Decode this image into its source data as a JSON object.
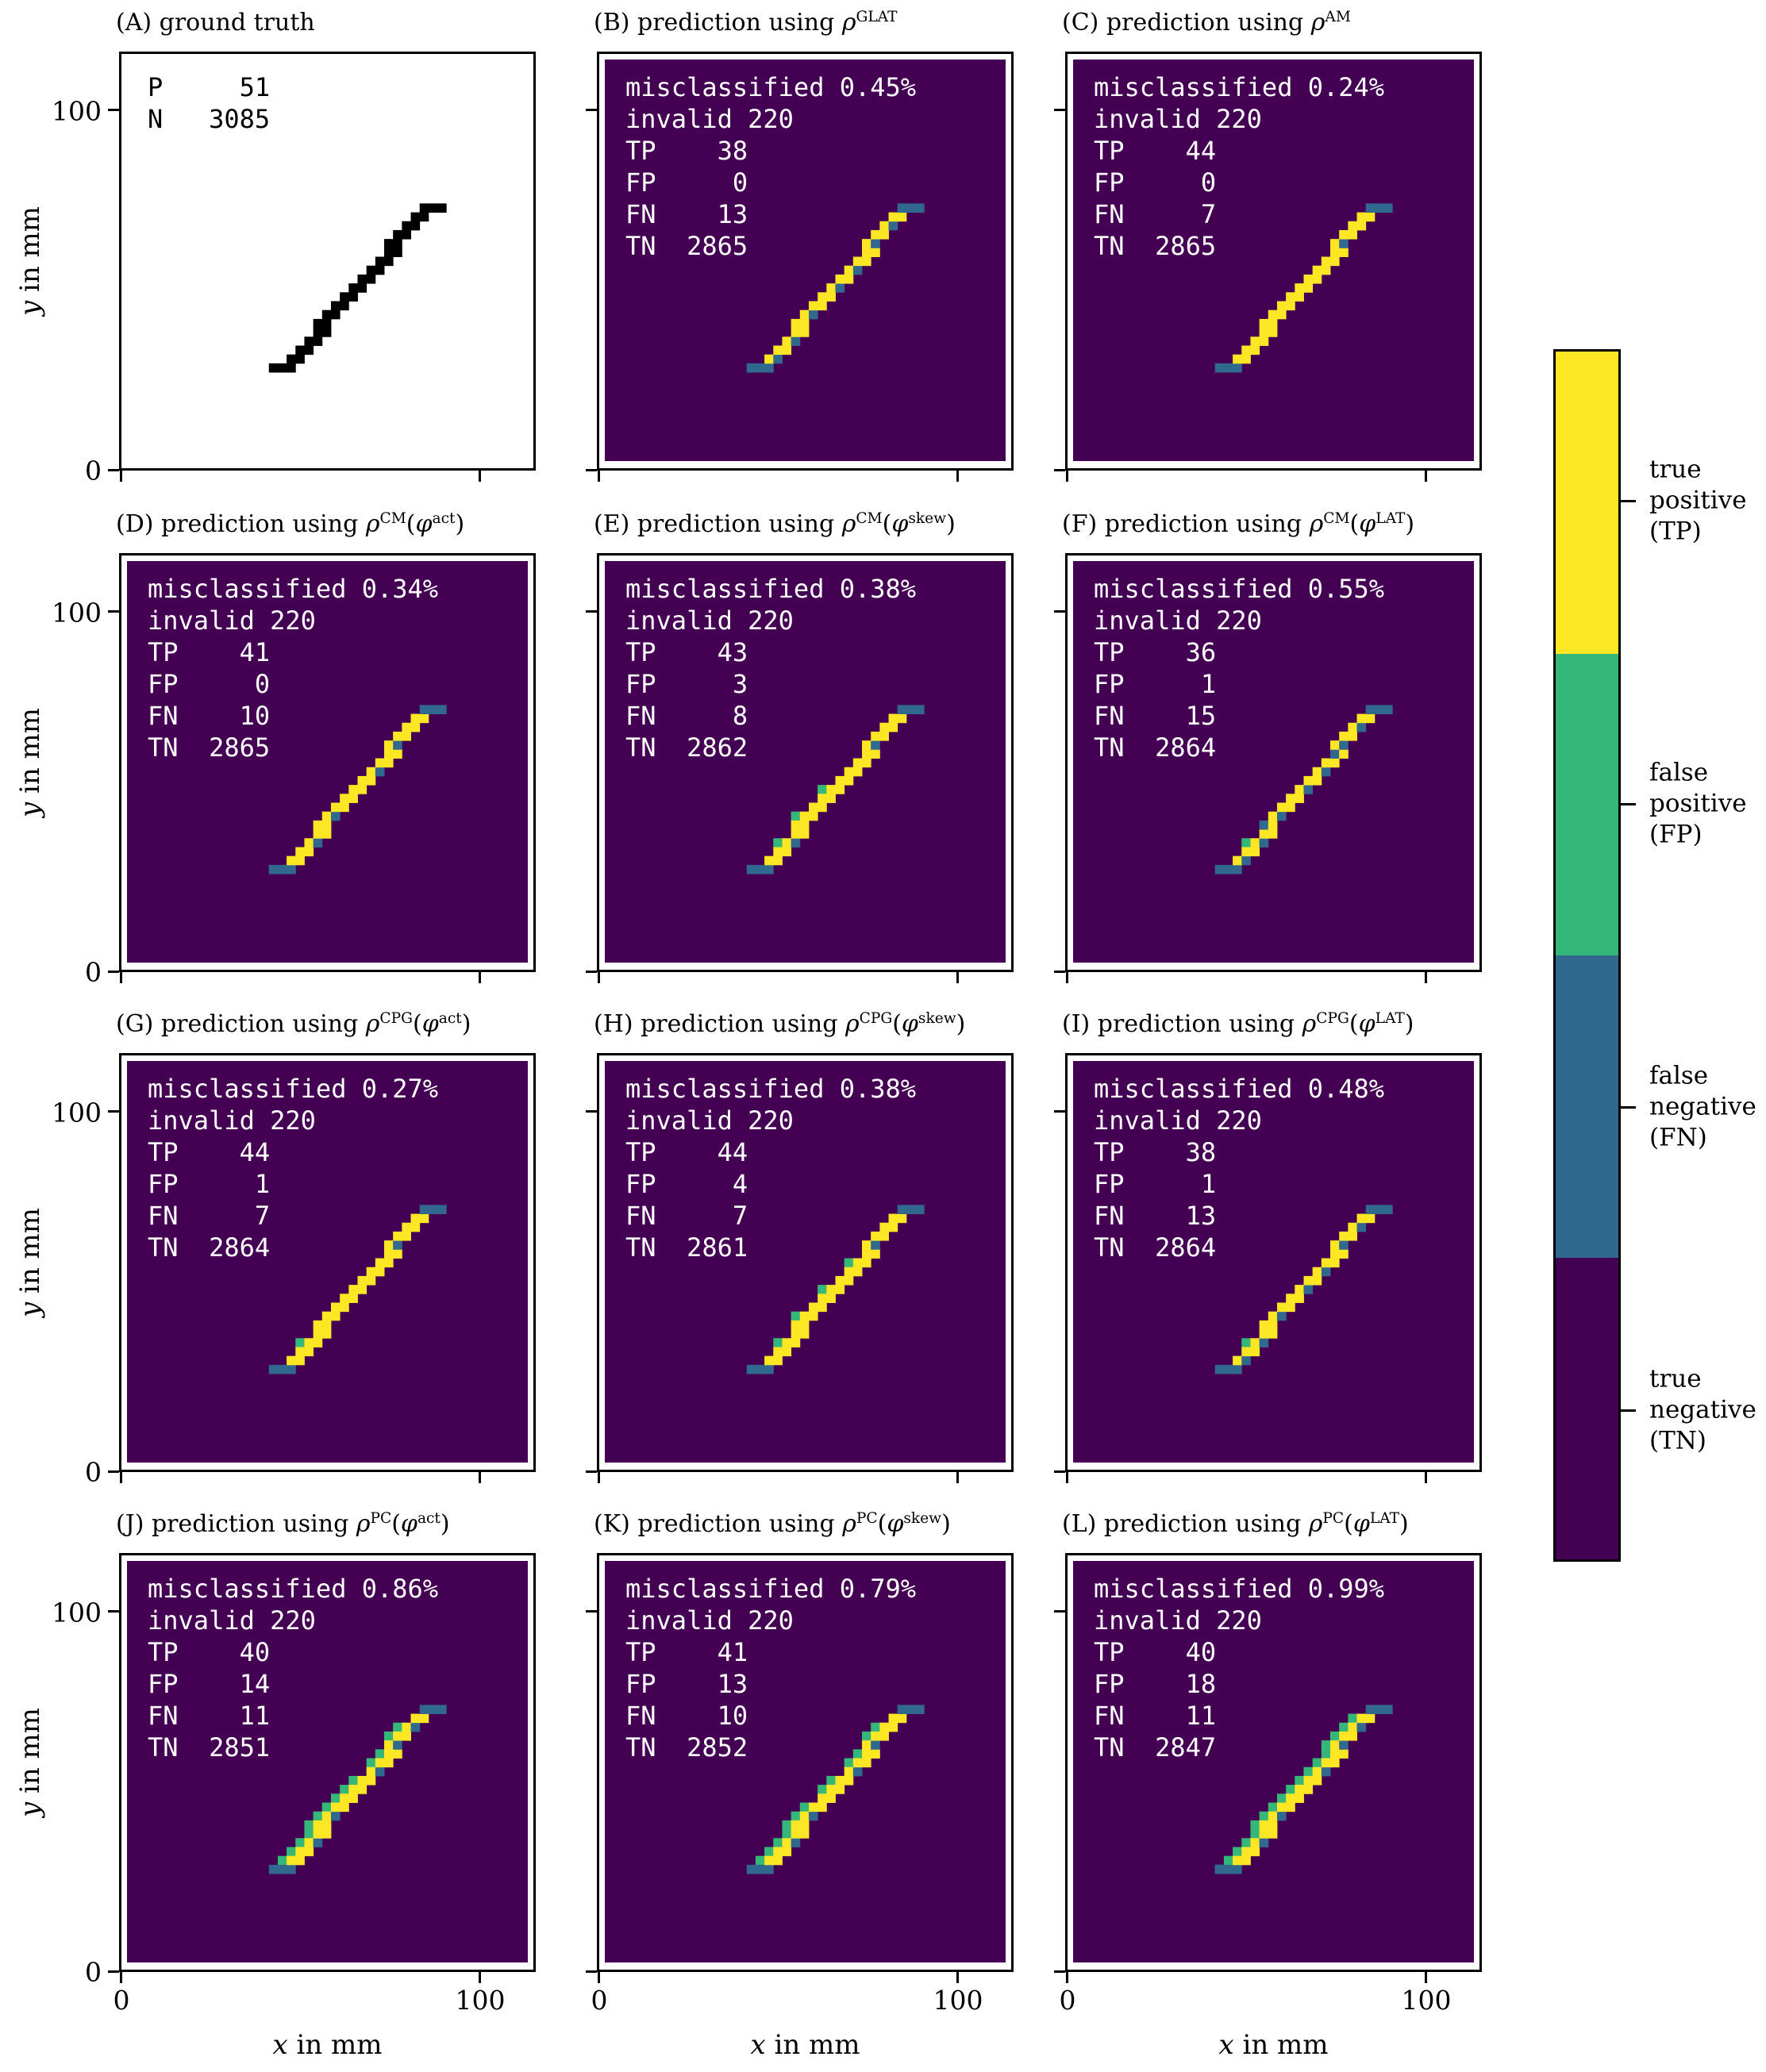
{
  "figure": {
    "axis": {
      "x_var": "x",
      "y_var": "y",
      "label_suffix": " in mm",
      "x_ticks": [
        "0",
        "100"
      ],
      "y_ticks": [
        "0",
        "100"
      ]
    },
    "colors": {
      "tp": "#fde725",
      "fp": "#35b779",
      "fn": "#31688e",
      "tn": "#440154",
      "gt_positive": "#000000",
      "gt_background": "#ffffff",
      "frame": "#000000",
      "text": "#000000",
      "stats_on_dark": "#ffffff"
    },
    "colorbar": {
      "entries": [
        {
          "key": "TP",
          "lines": [
            "true",
            "positive",
            "(TP)"
          ],
          "color_ref": "tp"
        },
        {
          "key": "FP",
          "lines": [
            "false",
            "positive",
            "(FP)"
          ],
          "color_ref": "fp"
        },
        {
          "key": "FN",
          "lines": [
            "false",
            "negative",
            "(FN)"
          ],
          "color_ref": "fn"
        },
        {
          "key": "TN",
          "lines": [
            "true",
            "negative",
            "(TN)"
          ],
          "color_ref": "tn"
        }
      ]
    }
  },
  "chart_data": {
    "type": "heatmap",
    "description": "12 panels (A-L) comparing a ground-truth pixelated diagonal line (2.5 mm cells) with 11 classifier predictions; prediction cells are colored by confusion category (TP yellow, FP green, FN blue, TN dark purple).",
    "categories": [
      "TP",
      "FP",
      "FN",
      "TN"
    ],
    "axis_range_mm": {
      "x": [
        0,
        116
      ],
      "y": [
        0,
        116
      ]
    },
    "line_segment_mm": {
      "x0": 42.5,
      "y0": 25,
      "x1": 87.5,
      "y1": 72.5,
      "cell_size": 2.5
    },
    "panels": [
      {
        "id": "A",
        "title_label": "(A)",
        "title_text": "ground truth",
        "method": null,
        "arg": null,
        "stats_lines": [
          "P     51",
          "N   3085"
        ],
        "counts": {
          "P": 51,
          "N": 3085
        }
      },
      {
        "id": "B",
        "title_label": "(B)",
        "title_text": "prediction using",
        "method": "GLAT",
        "arg": null,
        "stats_lines": [
          "misclassified 0.45%",
          "invalid 220",
          "TP    38",
          "FP     0",
          "FN    13",
          "TN  2865"
        ],
        "counts": {
          "misclassified_pct": 0.45,
          "invalid": 220,
          "TP": 38,
          "FP": 0,
          "FN": 13,
          "TN": 2865
        }
      },
      {
        "id": "C",
        "title_label": "(C)",
        "title_text": "prediction using",
        "method": "AM",
        "arg": null,
        "stats_lines": [
          "misclassified 0.24%",
          "invalid 220",
          "TP    44",
          "FP     0",
          "FN     7",
          "TN  2865"
        ],
        "counts": {
          "misclassified_pct": 0.24,
          "invalid": 220,
          "TP": 44,
          "FP": 0,
          "FN": 7,
          "TN": 2865
        }
      },
      {
        "id": "D",
        "title_label": "(D)",
        "title_text": "prediction using",
        "method": "CM",
        "arg": "act",
        "stats_lines": [
          "misclassified 0.34%",
          "invalid 220",
          "TP    41",
          "FP     0",
          "FN    10",
          "TN  2865"
        ],
        "counts": {
          "misclassified_pct": 0.34,
          "invalid": 220,
          "TP": 41,
          "FP": 0,
          "FN": 10,
          "TN": 2865
        }
      },
      {
        "id": "E",
        "title_label": "(E)",
        "title_text": "prediction using",
        "method": "CM",
        "arg": "skew",
        "stats_lines": [
          "misclassified 0.38%",
          "invalid 220",
          "TP    43",
          "FP     3",
          "FN     8",
          "TN  2862"
        ],
        "counts": {
          "misclassified_pct": 0.38,
          "invalid": 220,
          "TP": 43,
          "FP": 3,
          "FN": 8,
          "TN": 2862
        }
      },
      {
        "id": "F",
        "title_label": "(F)",
        "title_text": "prediction using",
        "method": "CM",
        "arg": "LAT",
        "stats_lines": [
          "misclassified 0.55%",
          "invalid 220",
          "TP    36",
          "FP     1",
          "FN    15",
          "TN  2864"
        ],
        "counts": {
          "misclassified_pct": 0.55,
          "invalid": 220,
          "TP": 36,
          "FP": 1,
          "FN": 15,
          "TN": 2864
        }
      },
      {
        "id": "G",
        "title_label": "(G)",
        "title_text": "prediction using",
        "method": "CPG",
        "arg": "act",
        "stats_lines": [
          "misclassified 0.27%",
          "invalid 220",
          "TP    44",
          "FP     1",
          "FN     7",
          "TN  2864"
        ],
        "counts": {
          "misclassified_pct": 0.27,
          "invalid": 220,
          "TP": 44,
          "FP": 1,
          "FN": 7,
          "TN": 2864
        }
      },
      {
        "id": "H",
        "title_label": "(H)",
        "title_text": "prediction using",
        "method": "CPG",
        "arg": "skew",
        "stats_lines": [
          "misclassified 0.38%",
          "invalid 220",
          "TP    44",
          "FP     4",
          "FN     7",
          "TN  2861"
        ],
        "counts": {
          "misclassified_pct": 0.38,
          "invalid": 220,
          "TP": 44,
          "FP": 4,
          "FN": 7,
          "TN": 2861
        }
      },
      {
        "id": "I",
        "title_label": "(I)",
        "title_text": "prediction using",
        "method": "CPG",
        "arg": "LAT",
        "stats_lines": [
          "misclassified 0.48%",
          "invalid 220",
          "TP    38",
          "FP     1",
          "FN    13",
          "TN  2864"
        ],
        "counts": {
          "misclassified_pct": 0.48,
          "invalid": 220,
          "TP": 38,
          "FP": 1,
          "FN": 13,
          "TN": 2864
        }
      },
      {
        "id": "J",
        "title_label": "(J)",
        "title_text": "prediction using",
        "method": "PC",
        "arg": "act",
        "stats_lines": [
          "misclassified 0.86%",
          "invalid 220",
          "TP    40",
          "FP    14",
          "FN    11",
          "TN  2851"
        ],
        "counts": {
          "misclassified_pct": 0.86,
          "invalid": 220,
          "TP": 40,
          "FP": 14,
          "FN": 11,
          "TN": 2851
        }
      },
      {
        "id": "K",
        "title_label": "(K)",
        "title_text": "prediction using",
        "method": "PC",
        "arg": "skew",
        "stats_lines": [
          "misclassified 0.79%",
          "invalid 220",
          "TP    41",
          "FP    13",
          "FN    10",
          "TN  2852"
        ],
        "counts": {
          "misclassified_pct": 0.79,
          "invalid": 220,
          "TP": 41,
          "FP": 13,
          "FN": 10,
          "TN": 2852
        }
      },
      {
        "id": "L",
        "title_label": "(L)",
        "title_text": "prediction using",
        "method": "PC",
        "arg": "LAT",
        "stats_lines": [
          "misclassified 0.99%",
          "invalid 220",
          "TP    40",
          "FP    18",
          "FN    11",
          "TN  2847"
        ],
        "counts": {
          "misclassified_pct": 0.99,
          "invalid": 220,
          "TP": 40,
          "FP": 18,
          "FN": 11,
          "TN": 2847
        }
      }
    ]
  }
}
